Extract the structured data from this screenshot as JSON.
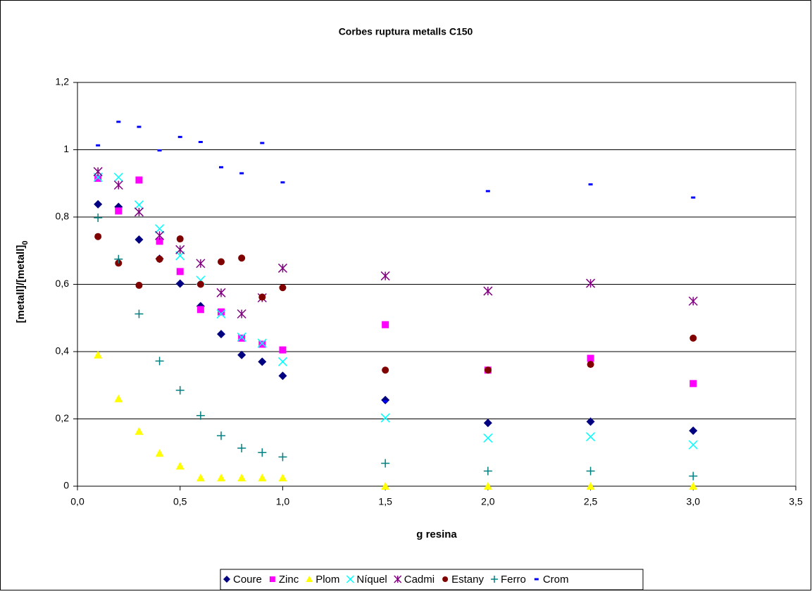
{
  "chart_data": {
    "type": "scatter",
    "title": "Corbes ruptura metalls C150",
    "xlabel": "g resina",
    "ylabel": "[metall]/[metall]",
    "ylabel_subscript": "0",
    "x": [
      0.1,
      0.2,
      0.3,
      0.4,
      0.5,
      0.6,
      0.7,
      0.8,
      0.9,
      1.0,
      1.5,
      2.0,
      2.5,
      3.0
    ],
    "series": [
      {
        "name": "Coure",
        "color": "#000080",
        "marker": "diamond",
        "values": [
          0.838,
          0.83,
          0.733,
          0.676,
          0.602,
          0.535,
          0.452,
          0.39,
          0.37,
          0.328,
          0.256,
          0.188,
          0.192,
          0.165
        ]
      },
      {
        "name": "Zinc",
        "color": "#ff00ff",
        "marker": "square",
        "values": [
          0.915,
          0.818,
          0.91,
          0.728,
          0.638,
          0.525,
          0.518,
          0.44,
          0.422,
          0.405,
          0.48,
          0.345,
          0.38,
          0.305
        ]
      },
      {
        "name": "Plom",
        "color": "#ffff00",
        "marker": "triangle",
        "values": [
          0.39,
          0.26,
          0.163,
          0.098,
          0.06,
          0.025,
          0.025,
          0.025,
          0.025,
          0.025,
          0,
          0,
          0,
          0
        ]
      },
      {
        "name": "Níquel",
        "color": "#00ffff",
        "marker": "x",
        "values": [
          0.918,
          0.918,
          0.836,
          0.765,
          0.685,
          0.612,
          0.512,
          0.443,
          0.425,
          0.37,
          0.203,
          0.143,
          0.147,
          0.123
        ]
      },
      {
        "name": "Cadmi",
        "color": "#800080",
        "marker": "star",
        "values": [
          0.935,
          0.895,
          0.815,
          0.745,
          0.703,
          0.662,
          0.575,
          0.512,
          0.56,
          0.648,
          0.625,
          0.58,
          0.603,
          0.55
        ]
      },
      {
        "name": "Estany",
        "color": "#800000",
        "marker": "circle",
        "values": [
          0.742,
          0.663,
          0.597,
          0.675,
          0.735,
          0.6,
          0.667,
          0.678,
          0.562,
          0.59,
          0.345,
          0.345,
          0.362,
          0.44
        ]
      },
      {
        "name": "Ferro",
        "color": "#008080",
        "marker": "plus",
        "values": [
          0.798,
          0.675,
          0.512,
          0.372,
          0.285,
          0.21,
          0.15,
          0.113,
          0.1,
          0.087,
          0.068,
          0.045,
          0.045,
          0.03
        ]
      },
      {
        "name": "Crom",
        "color": "#0000ff",
        "marker": "dash",
        "values": [
          1.013,
          1.083,
          1.068,
          0.998,
          1.038,
          1.023,
          0.948,
          0.93,
          1.02,
          0.903,
          0.252,
          0.877,
          0.897,
          0.858
        ]
      }
    ],
    "xlim": [
      0,
      3.5
    ],
    "xticks": [
      {
        "value": 0,
        "label": "0,0"
      },
      {
        "value": 0.5,
        "label": "0,5"
      },
      {
        "value": 1,
        "label": "1,0"
      },
      {
        "value": 1.5,
        "label": "1,5"
      },
      {
        "value": 2,
        "label": "2,0"
      },
      {
        "value": 2.5,
        "label": "2,5"
      },
      {
        "value": 3,
        "label": "3,0"
      },
      {
        "value": 3.5,
        "label": "3,5"
      }
    ],
    "ylim": [
      0,
      1.2
    ],
    "yticks": [
      0,
      {
        "value": 0.2,
        "label": "0,2"
      },
      {
        "value": 0.4,
        "label": "0,4"
      },
      {
        "value": 0.6,
        "label": "0,6"
      },
      {
        "value": 0.8,
        "label": "0,8"
      },
      1,
      {
        "value": 1.2,
        "label": "1,2"
      }
    ],
    "grid": true,
    "legend": "bottom"
  }
}
